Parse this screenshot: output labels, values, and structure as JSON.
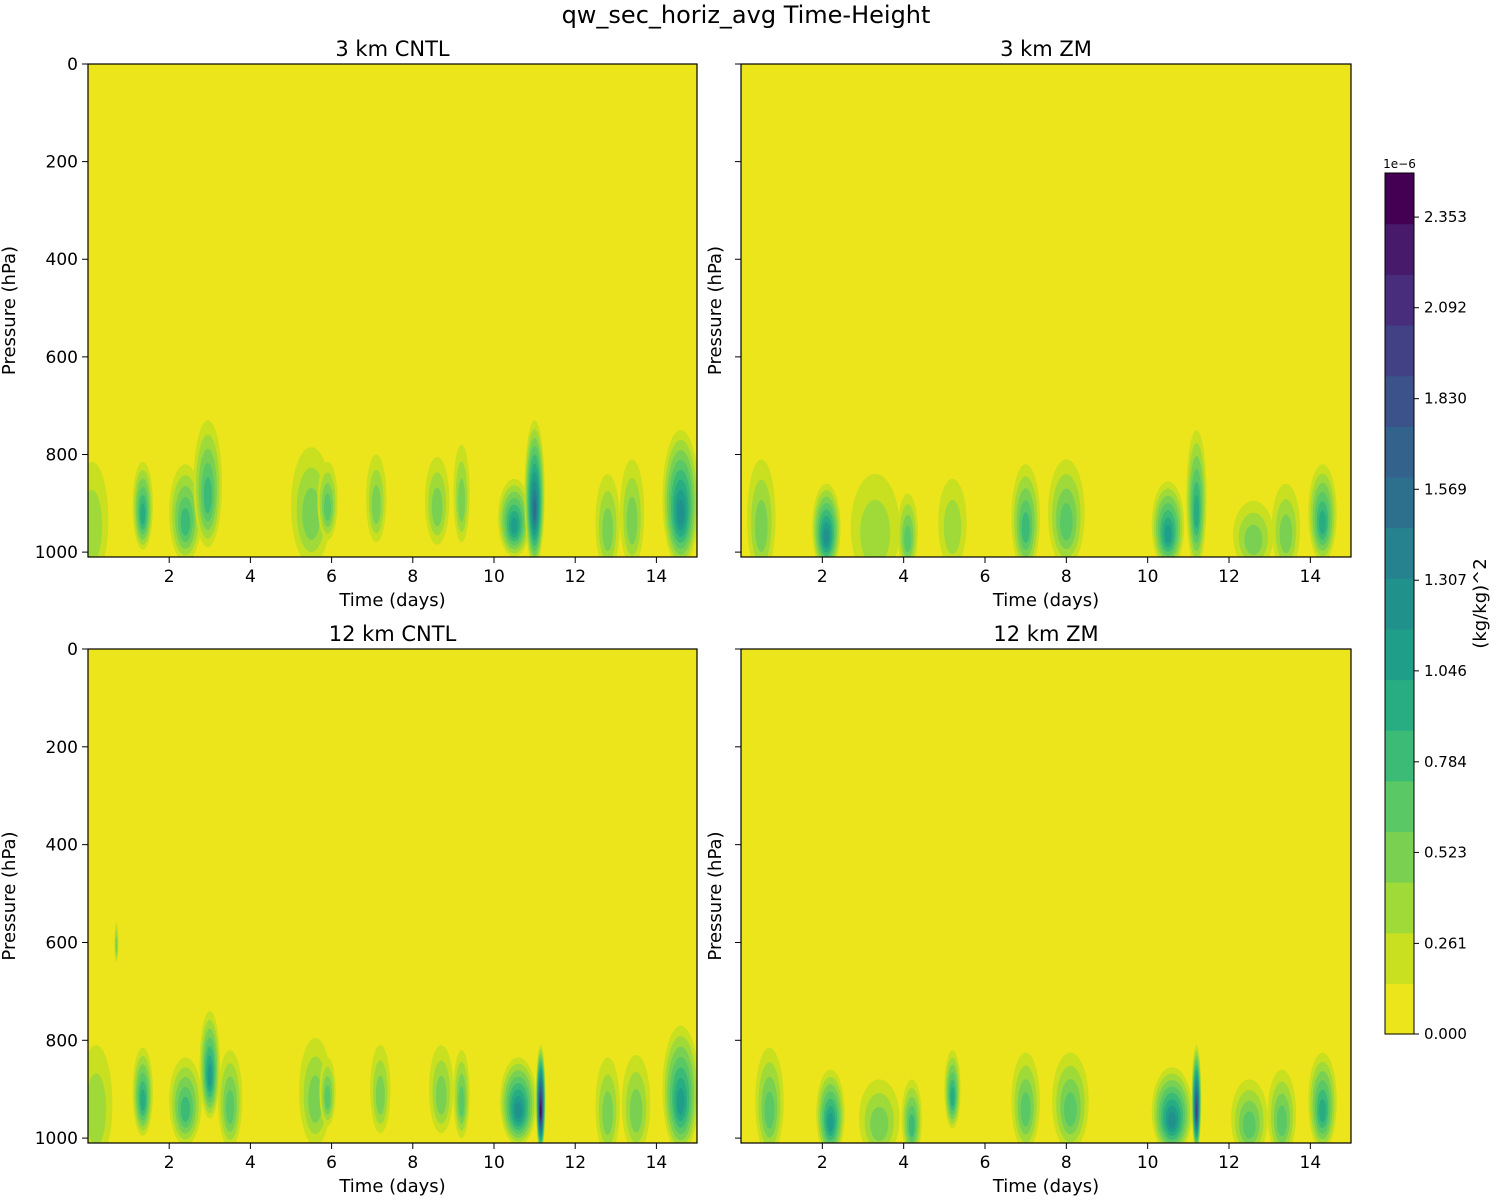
{
  "chart_data": {
    "type": "heatmap",
    "title": "qw_sec_horiz_avg Time-Height",
    "xlabel": "Time (days)",
    "ylabel": "Pressure (hPa)",
    "xlim": [
      0,
      15
    ],
    "ylim": [
      1010,
      0
    ],
    "x_ticks": [
      "2",
      "4",
      "6",
      "8",
      "10",
      "12",
      "14"
    ],
    "y_ticks": [
      "0",
      "200",
      "400",
      "600",
      "800",
      "1000"
    ],
    "colorbar": {
      "label": "(kg/kg)^2",
      "scale_label": "1e−6",
      "min": 0.0,
      "max": 2.48,
      "ticks": [
        "0.000",
        "0.261",
        "0.523",
        "0.784",
        "1.046",
        "1.307",
        "1.569",
        "1.830",
        "2.092",
        "2.353"
      ],
      "levels": [
        "#ece51b",
        "#c8e020",
        "#a0da39",
        "#7ad151",
        "#5ac864",
        "#3bbb75",
        "#27ad81",
        "#1f9e89",
        "#21918c",
        "#26828e",
        "#2d708e",
        "#33638d",
        "#3b528b",
        "#424186",
        "#472d7b",
        "#481a6c",
        "#440154"
      ]
    },
    "panels": [
      {
        "title": "3 km CNTL",
        "show_ytick_labels": true,
        "features": [
          {
            "t": 0.1,
            "p": 935,
            "width_days": 0.4,
            "depth_hpa": 120,
            "peak": 0.35
          },
          {
            "t": 1.35,
            "p": 905,
            "width_days": 0.25,
            "depth_hpa": 90,
            "peak": 1.0
          },
          {
            "t": 2.4,
            "p": 920,
            "width_days": 0.4,
            "depth_hpa": 100,
            "peak": 0.8
          },
          {
            "t": 2.95,
            "p": 860,
            "width_days": 0.35,
            "depth_hpa": 130,
            "peak": 0.7
          },
          {
            "t": 5.5,
            "p": 905,
            "width_days": 0.5,
            "depth_hpa": 120,
            "peak": 0.4
          },
          {
            "t": 5.9,
            "p": 895,
            "width_days": 0.25,
            "depth_hpa": 80,
            "peak": 0.6
          },
          {
            "t": 7.1,
            "p": 890,
            "width_days": 0.25,
            "depth_hpa": 90,
            "peak": 0.5
          },
          {
            "t": 8.6,
            "p": 895,
            "width_days": 0.3,
            "depth_hpa": 90,
            "peak": 0.5
          },
          {
            "t": 9.2,
            "p": 880,
            "width_days": 0.2,
            "depth_hpa": 100,
            "peak": 0.45
          },
          {
            "t": 10.5,
            "p": 930,
            "width_days": 0.4,
            "depth_hpa": 80,
            "peak": 1.1
          },
          {
            "t": 11.0,
            "p": 880,
            "width_days": 0.25,
            "depth_hpa": 150,
            "peak": 1.55
          },
          {
            "t": 12.8,
            "p": 940,
            "width_days": 0.3,
            "depth_hpa": 100,
            "peak": 0.4
          },
          {
            "t": 13.4,
            "p": 920,
            "width_days": 0.3,
            "depth_hpa": 110,
            "peak": 0.45
          },
          {
            "t": 14.6,
            "p": 890,
            "width_days": 0.45,
            "depth_hpa": 140,
            "peak": 1.2
          }
        ]
      },
      {
        "title": "3 km ZM",
        "show_ytick_labels": false,
        "features": [
          {
            "t": 0.5,
            "p": 930,
            "width_days": 0.35,
            "depth_hpa": 120,
            "peak": 0.5
          },
          {
            "t": 2.1,
            "p": 950,
            "width_days": 0.35,
            "depth_hpa": 90,
            "peak": 1.25
          },
          {
            "t": 3.3,
            "p": 950,
            "width_days": 0.6,
            "depth_hpa": 110,
            "peak": 0.35
          },
          {
            "t": 4.1,
            "p": 960,
            "width_days": 0.25,
            "depth_hpa": 80,
            "peak": 0.6
          },
          {
            "t": 5.2,
            "p": 940,
            "width_days": 0.35,
            "depth_hpa": 90,
            "peak": 0.35
          },
          {
            "t": 7.0,
            "p": 930,
            "width_days": 0.35,
            "depth_hpa": 110,
            "peak": 0.7
          },
          {
            "t": 8.0,
            "p": 920,
            "width_days": 0.45,
            "depth_hpa": 110,
            "peak": 0.55
          },
          {
            "t": 10.5,
            "p": 945,
            "width_days": 0.4,
            "depth_hpa": 90,
            "peak": 1.1
          },
          {
            "t": 11.2,
            "p": 890,
            "width_days": 0.25,
            "depth_hpa": 140,
            "peak": 0.9
          },
          {
            "t": 12.6,
            "p": 965,
            "width_days": 0.5,
            "depth_hpa": 70,
            "peak": 0.45
          },
          {
            "t": 13.4,
            "p": 950,
            "width_days": 0.35,
            "depth_hpa": 90,
            "peak": 0.45
          },
          {
            "t": 14.3,
            "p": 920,
            "width_days": 0.35,
            "depth_hpa": 100,
            "peak": 0.95
          }
        ]
      },
      {
        "title": "12 km CNTL",
        "show_ytick_labels": true,
        "features": [
          {
            "t": 0.2,
            "p": 930,
            "width_days": 0.4,
            "depth_hpa": 120,
            "peak": 0.35
          },
          {
            "t": 0.7,
            "p": 600,
            "width_days": 0.05,
            "depth_hpa": 40,
            "peak": 0.4
          },
          {
            "t": 1.35,
            "p": 905,
            "width_days": 0.25,
            "depth_hpa": 90,
            "peak": 1.0
          },
          {
            "t": 2.4,
            "p": 925,
            "width_days": 0.4,
            "depth_hpa": 90,
            "peak": 0.7
          },
          {
            "t": 3.0,
            "p": 850,
            "width_days": 0.25,
            "depth_hpa": 110,
            "peak": 1.1
          },
          {
            "t": 3.5,
            "p": 920,
            "width_days": 0.3,
            "depth_hpa": 100,
            "peak": 0.6
          },
          {
            "t": 5.6,
            "p": 905,
            "width_days": 0.4,
            "depth_hpa": 110,
            "peak": 0.45
          },
          {
            "t": 5.9,
            "p": 905,
            "width_days": 0.2,
            "depth_hpa": 70,
            "peak": 0.6
          },
          {
            "t": 7.2,
            "p": 900,
            "width_days": 0.25,
            "depth_hpa": 90,
            "peak": 0.5
          },
          {
            "t": 8.7,
            "p": 900,
            "width_days": 0.3,
            "depth_hpa": 90,
            "peak": 0.5
          },
          {
            "t": 9.2,
            "p": 910,
            "width_days": 0.2,
            "depth_hpa": 90,
            "peak": 0.6
          },
          {
            "t": 10.6,
            "p": 925,
            "width_days": 0.45,
            "depth_hpa": 90,
            "peak": 1.2
          },
          {
            "t": 11.15,
            "p": 920,
            "width_days": 0.12,
            "depth_hpa": 110,
            "peak": 2.45
          },
          {
            "t": 12.8,
            "p": 935,
            "width_days": 0.3,
            "depth_hpa": 100,
            "peak": 0.4
          },
          {
            "t": 13.5,
            "p": 930,
            "width_days": 0.35,
            "depth_hpa": 100,
            "peak": 0.45
          },
          {
            "t": 14.6,
            "p": 900,
            "width_days": 0.45,
            "depth_hpa": 130,
            "peak": 1.15
          }
        ]
      },
      {
        "title": "12 km ZM",
        "show_ytick_labels": false,
        "features": [
          {
            "t": 0.7,
            "p": 925,
            "width_days": 0.35,
            "depth_hpa": 110,
            "peak": 0.55
          },
          {
            "t": 2.2,
            "p": 950,
            "width_days": 0.35,
            "depth_hpa": 90,
            "peak": 1.15
          },
          {
            "t": 3.4,
            "p": 960,
            "width_days": 0.5,
            "depth_hpa": 80,
            "peak": 0.4
          },
          {
            "t": 4.2,
            "p": 960,
            "width_days": 0.25,
            "depth_hpa": 80,
            "peak": 0.8
          },
          {
            "t": 5.2,
            "p": 900,
            "width_days": 0.2,
            "depth_hpa": 80,
            "peak": 0.9
          },
          {
            "t": 7.0,
            "p": 925,
            "width_days": 0.35,
            "depth_hpa": 100,
            "peak": 0.6
          },
          {
            "t": 8.1,
            "p": 925,
            "width_days": 0.45,
            "depth_hpa": 100,
            "peak": 0.6
          },
          {
            "t": 10.6,
            "p": 945,
            "width_days": 0.5,
            "depth_hpa": 90,
            "peak": 1.3
          },
          {
            "t": 11.2,
            "p": 920,
            "width_days": 0.12,
            "depth_hpa": 110,
            "peak": 2.0
          },
          {
            "t": 12.5,
            "p": 960,
            "width_days": 0.45,
            "depth_hpa": 80,
            "peak": 0.6
          },
          {
            "t": 13.3,
            "p": 950,
            "width_days": 0.35,
            "depth_hpa": 90,
            "peak": 0.55
          },
          {
            "t": 14.3,
            "p": 925,
            "width_days": 0.35,
            "depth_hpa": 100,
            "peak": 1.0
          }
        ]
      }
    ]
  }
}
